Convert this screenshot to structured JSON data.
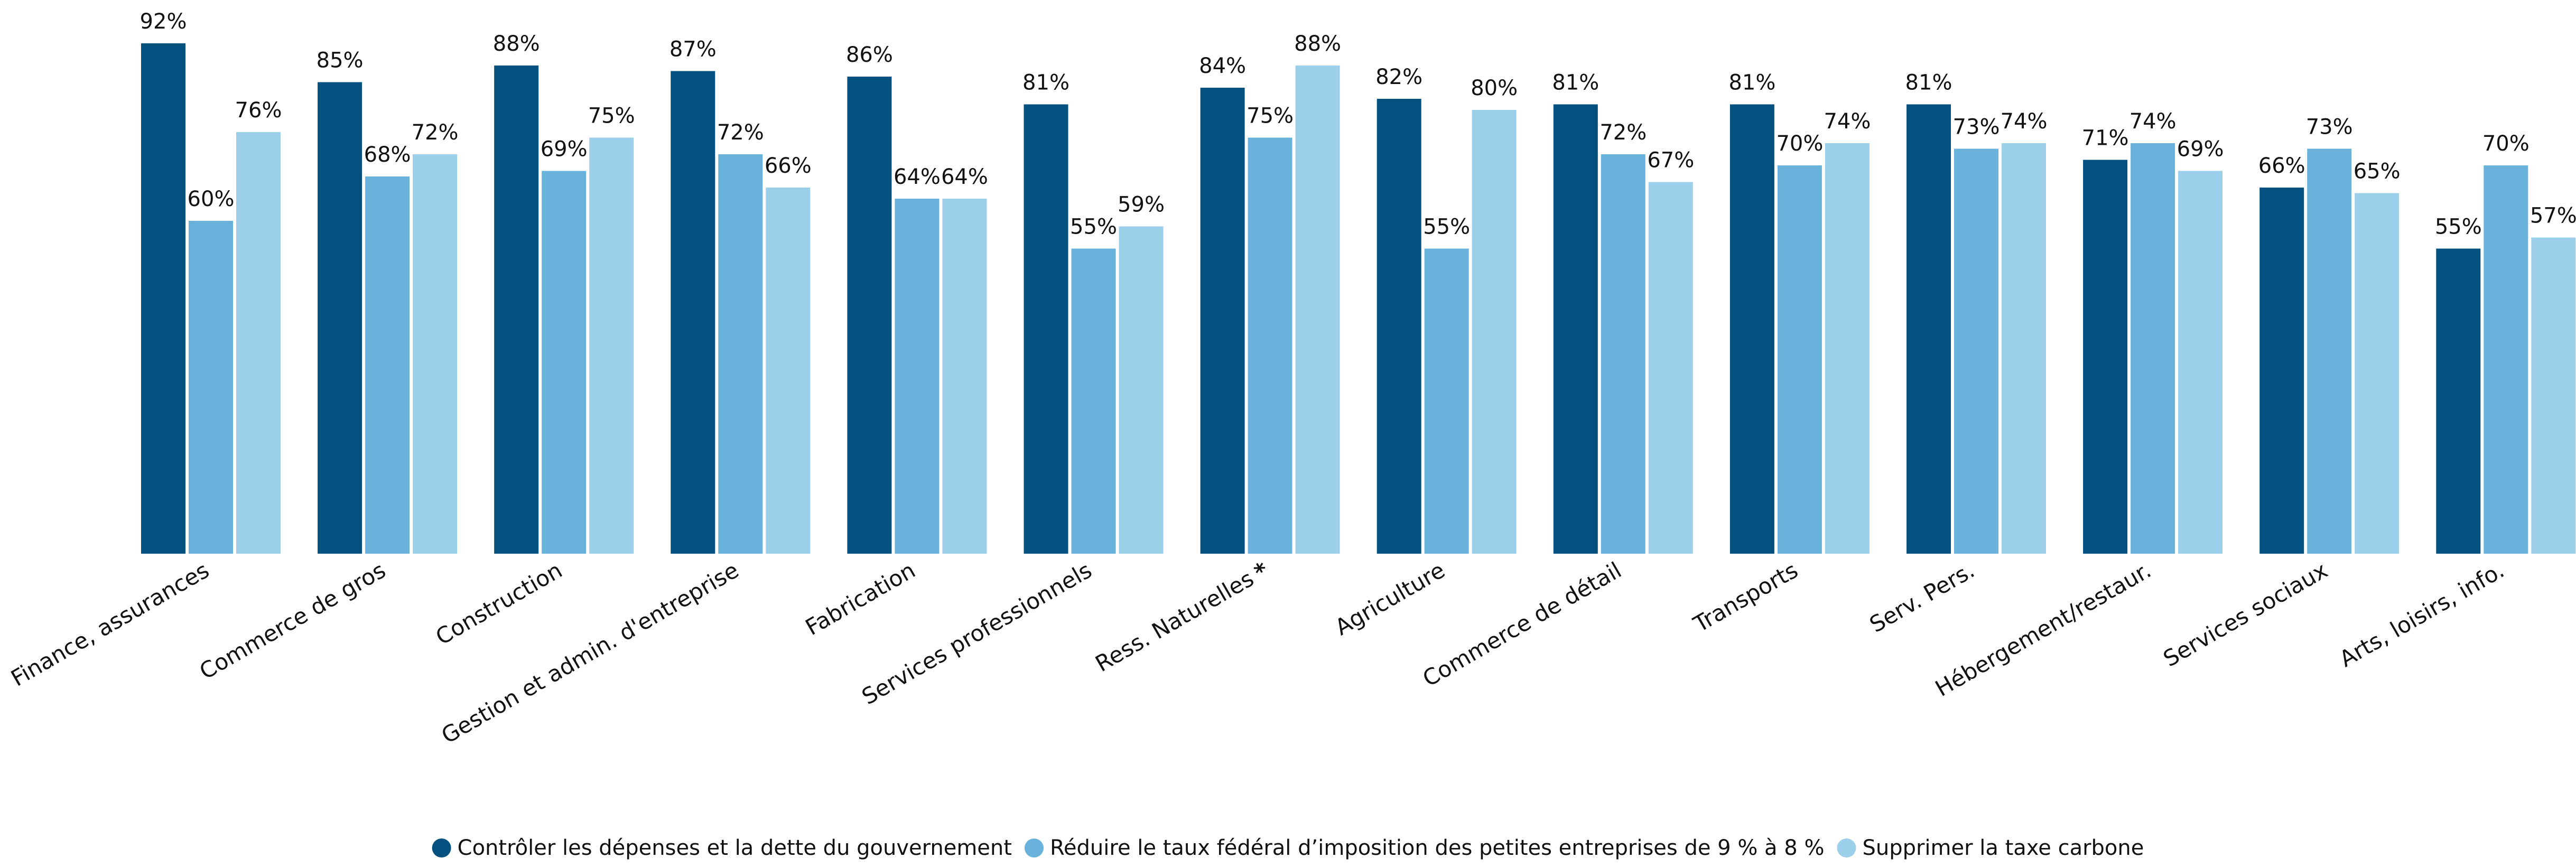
{
  "chart_data": {
    "type": "bar",
    "title": "",
    "xlabel": "",
    "ylabel": "",
    "ylim": [
      0,
      100
    ],
    "grid": false,
    "legend_position": "bottom-center",
    "value_suffix": "%",
    "categories": [
      "Finance, assurances",
      "Commerce de gros",
      "Construction",
      "Gestion et admin. d'entreprise",
      "Fabrication",
      "Services professionnels",
      "Ress. Naturelles",
      "Agriculture",
      "Commerce de détail",
      "Transports",
      "Serv. Pers.",
      "Hébergement/restaur.",
      "Services sociaux",
      "Arts, loisirs, info."
    ],
    "category_markers": [
      "",
      "",
      "",
      "",
      "",
      "",
      "*",
      "",
      "",
      "",
      "",
      "",
      "",
      ""
    ],
    "series": [
      {
        "name": "Contrôler les dépenses et la dette du gouvernement",
        "color": "#04507f",
        "values": [
          92,
          85,
          88,
          87,
          86,
          81,
          84,
          82,
          81,
          81,
          81,
          71,
          66,
          55
        ]
      },
      {
        "name": "Réduire le taux fédéral d’imposition des petites entreprises de 9 % à 8 %",
        "color": "#69b2dc",
        "values": [
          60,
          68,
          69,
          72,
          64,
          55,
          75,
          55,
          72,
          70,
          73,
          74,
          73,
          70
        ]
      },
      {
        "name": "Supprimer la taxe carbone",
        "color": "#9ccfea",
        "values": [
          76,
          72,
          75,
          66,
          64,
          59,
          88,
          80,
          67,
          74,
          74,
          69,
          65,
          57
        ]
      }
    ]
  }
}
